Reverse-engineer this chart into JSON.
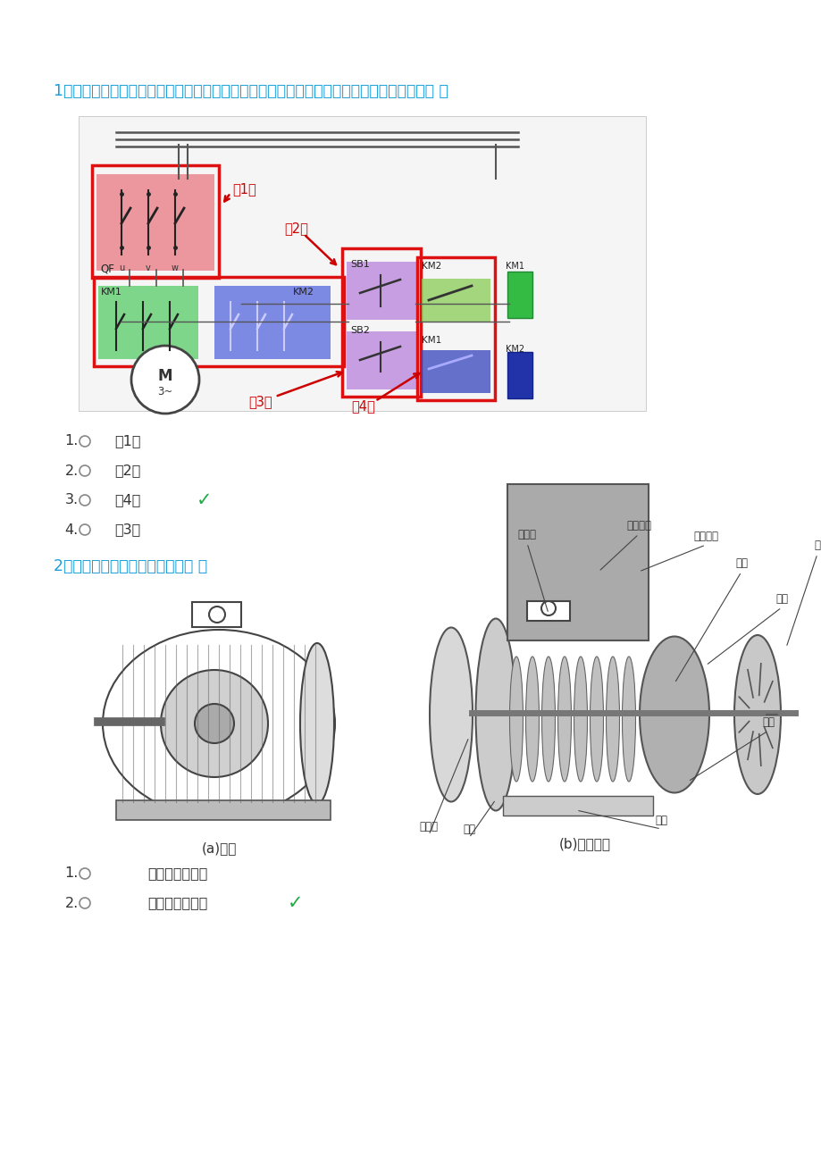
{
  "bg_color": "#ffffff",
  "q1_text": "1、图示的控制线路图中，用红色方框标出的哪个部分代表了防止三相线短路的互锁环节？（ ）",
  "q1_color": "#1a9fd9",
  "q1_options": [
    "（1）",
    "（2）",
    "（4）",
    "（3）"
  ],
  "q1_correct": 2,
  "q2_text": "2、下图所示的电动机是一台：（ ）",
  "q2_color": "#1a9fd9",
  "q2_options": [
    "他励直流电动机",
    "三相异步电动机"
  ],
  "q2_correct": 1,
  "check_color": "#22aa44",
  "radio_color": "#888888",
  "text_color": "#333333",
  "label_color": "#cc0000"
}
